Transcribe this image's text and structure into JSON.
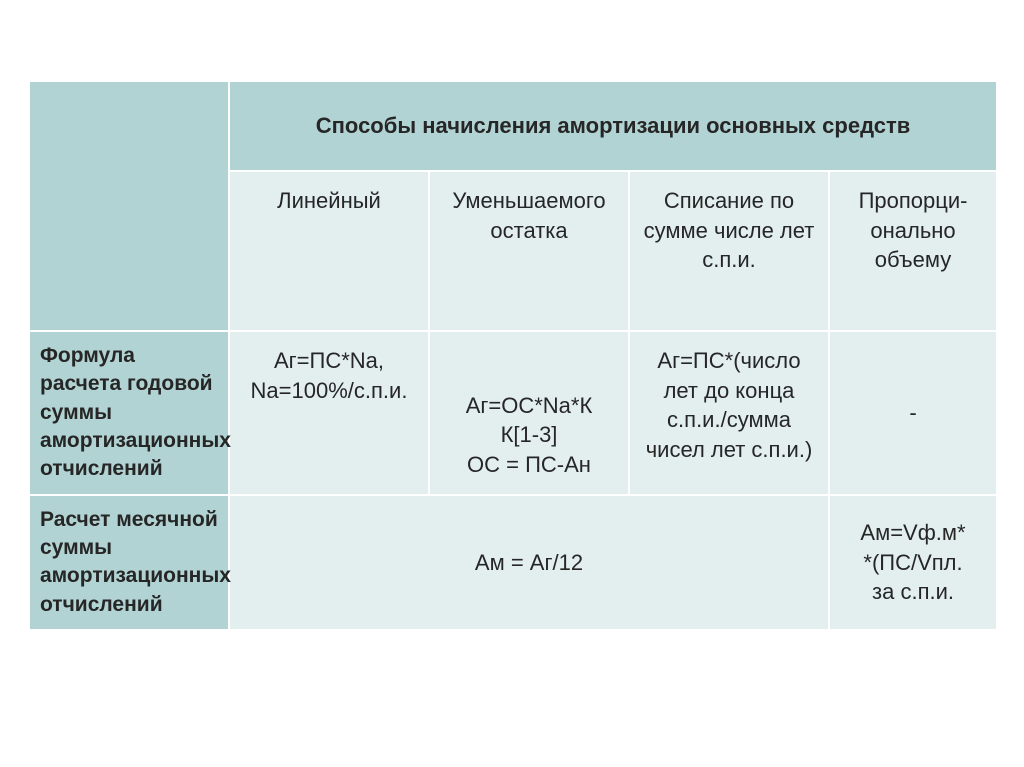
{
  "type": "table",
  "background_color": "#ffffff",
  "header_bg": "#b2d3d3",
  "cell_bg": "#e3efef",
  "border_color": "#ffffff",
  "text_color": "#262626",
  "title_fontsize": 22,
  "body_fontsize": 22,
  "label_fontsize": 21,
  "font_family": "Arial",
  "columns": [
    200,
    200,
    200,
    200,
    168
  ],
  "header": {
    "main": "Способы начисления амортизации основных средств",
    "sub": [
      "Линейный",
      "Уменьшаемого остатка",
      "Списание по сумме числе лет с.п.и.",
      "Пропорци-онально объему"
    ]
  },
  "rows": [
    {
      "label": "Формула расчета годовой суммы амортизационных отчислений",
      "c1": "Аг=ПС*Nа,\nNа=100%/с.п.и.",
      "c2": "Аг=ОС*Nа*К\nК[1-3]\nОС = ПС-Ан",
      "c3": "Аг=ПС*(число лет до конца с.п.и./сумма чисел лет с.п.и.)",
      "c4": "-"
    },
    {
      "label": "Расчет месячной суммы амортизационных отчислений",
      "merged": "Ам = Аг/12",
      "c4": "Ам=Vф.м*\n*(ПС/Vпл.\nза с.п.и."
    }
  ]
}
